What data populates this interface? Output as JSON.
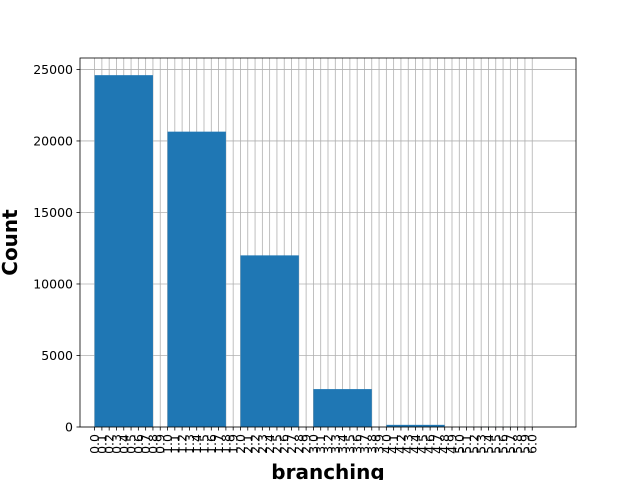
{
  "chart_data": {
    "type": "bar",
    "title": "",
    "xlabel": "branching",
    "ylabel": "Count",
    "bar_color": "#1f77b4",
    "grid": true,
    "xlim": [
      -0.2,
      6.6
    ],
    "ylim": [
      0,
      25800
    ],
    "y_ticks": [
      0,
      5000,
      10000,
      15000,
      20000,
      25000
    ],
    "x_ticks": [
      "0.0",
      "0.1",
      "0.2",
      "0.3",
      "0.4",
      "0.5",
      "0.6",
      "0.7",
      "0.8",
      "0.9",
      "1.0",
      "1.1",
      "1.2",
      "1.3",
      "1.4",
      "1.5",
      "1.6",
      "1.7",
      "1.8",
      "1.9",
      "2.0",
      "2.1",
      "2.2",
      "2.3",
      "2.4",
      "2.5",
      "2.6",
      "2.7",
      "2.8",
      "2.9",
      "3.0",
      "3.1",
      "3.2",
      "3.3",
      "3.4",
      "3.5",
      "3.6",
      "3.7",
      "3.8",
      "3.9",
      "4.0",
      "4.1",
      "4.2",
      "4.3",
      "4.4",
      "4.5",
      "4.6",
      "4.7",
      "4.8",
      "4.9",
      "5.0",
      "5.1",
      "5.2",
      "5.3",
      "5.4",
      "5.5",
      "5.6",
      "5.7",
      "5.8",
      "5.9",
      "6.0"
    ],
    "bars": [
      {
        "x_start": 0.0,
        "x_end": 0.8,
        "value": 24600
      },
      {
        "x_start": 1.0,
        "x_end": 1.8,
        "value": 20650
      },
      {
        "x_start": 2.0,
        "x_end": 2.8,
        "value": 12000
      },
      {
        "x_start": 3.0,
        "x_end": 3.8,
        "value": 2650
      },
      {
        "x_start": 4.0,
        "x_end": 4.8,
        "value": 150
      },
      {
        "x_start": 5.0,
        "x_end": 5.8,
        "value": 10
      }
    ]
  }
}
